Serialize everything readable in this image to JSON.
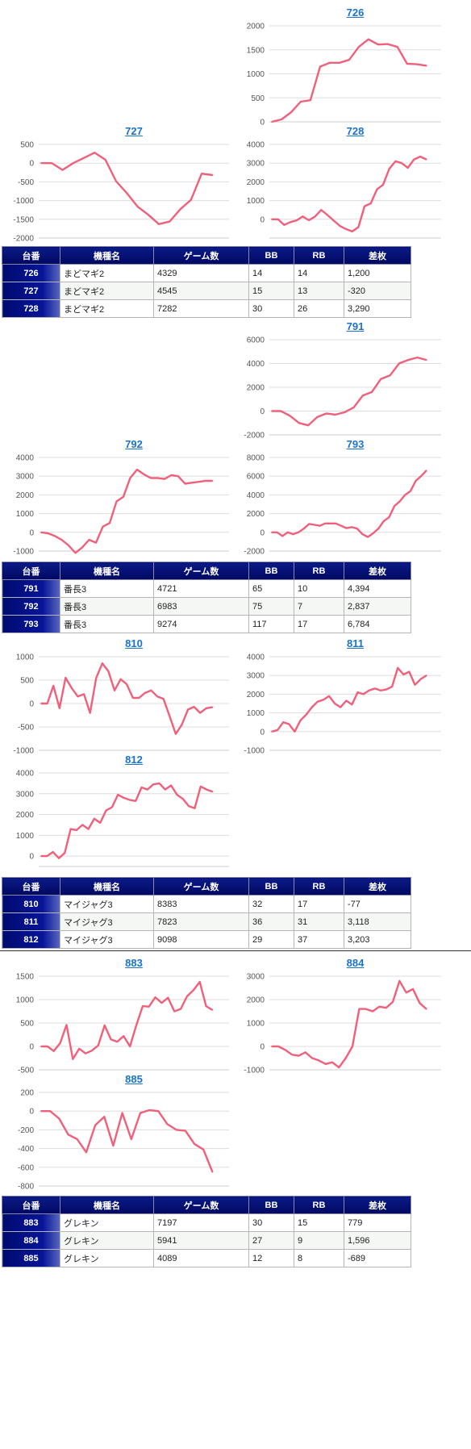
{
  "groups": [
    {
      "charts": [
        {
          "title": "726",
          "yticks": [
            0,
            500,
            1000,
            1500,
            2000
          ],
          "ylim": [
            0,
            2000
          ],
          "values": [
            0,
            50,
            200,
            420,
            450,
            1150,
            1230,
            1230,
            1290,
            1560,
            1720,
            1610,
            1620,
            1560,
            1210,
            1200,
            1170
          ]
        },
        {
          "title": "727",
          "yticks": [
            -2000,
            -1500,
            -1000,
            -500,
            0,
            500
          ],
          "ylim": [
            -2000,
            500
          ],
          "values": [
            0,
            0,
            -180,
            0,
            140,
            280,
            90,
            -480,
            -800,
            -1160,
            -1380,
            -1630,
            -1560,
            -1230,
            -980,
            -280,
            -320
          ]
        },
        {
          "title": "728",
          "yticks": [
            0,
            1000,
            2000,
            3000,
            4000
          ],
          "ylim": [
            -1000,
            4000
          ],
          "values": [
            0,
            0,
            -300,
            -150,
            -60,
            150,
            -50,
            150,
            500,
            230,
            -70,
            -350,
            -520,
            -650,
            -420,
            700,
            850,
            1600,
            1850,
            2700,
            3100,
            3000,
            2750,
            3200,
            3350,
            3200
          ]
        }
      ],
      "table": {
        "headers": [
          "台番",
          "機種名",
          "ゲーム数",
          "BB",
          "RB",
          "差枚"
        ],
        "rows": [
          {
            "no": "726",
            "name": "まどマギ2",
            "games": "4329",
            "bb": "14",
            "rb": "14",
            "diff": "1,200"
          },
          {
            "no": "727",
            "name": "まどマギ2",
            "games": "4545",
            "bb": "15",
            "rb": "13",
            "diff": "-320"
          },
          {
            "no": "728",
            "name": "まどマギ2",
            "games": "7282",
            "bb": "30",
            "rb": "26",
            "diff": "3,290"
          }
        ]
      }
    },
    {
      "charts": [
        {
          "title": "791",
          "yticks": [
            -2000,
            0,
            2000,
            4000,
            6000
          ],
          "ylim": [
            -2000,
            6000
          ],
          "values": [
            0,
            0,
            -400,
            -1000,
            -1200,
            -500,
            -200,
            -300,
            -100,
            300,
            1300,
            1600,
            2700,
            3000,
            4000,
            4300,
            4500,
            4300
          ]
        },
        {
          "title": "792",
          "yticks": [
            -1000,
            0,
            1000,
            2000,
            3000,
            4000
          ],
          "ylim": [
            -1000,
            4000
          ],
          "values": [
            0,
            -50,
            -200,
            -400,
            -700,
            -1100,
            -800,
            -400,
            -550,
            300,
            500,
            1650,
            1900,
            2900,
            3350,
            3100,
            2900,
            2900,
            2850,
            3050,
            3000,
            2600,
            2650,
            2700,
            2750,
            2750
          ]
        },
        {
          "title": "793",
          "yticks": [
            -2000,
            0,
            2000,
            4000,
            6000,
            8000
          ],
          "ylim": [
            -2000,
            8000
          ],
          "values": [
            0,
            0,
            -400,
            0,
            -200,
            0,
            400,
            900,
            800,
            700,
            950,
            950,
            950,
            700,
            450,
            550,
            400,
            -200,
            -500,
            -100,
            400,
            1200,
            1600,
            2800,
            3300,
            4000,
            4400,
            5500,
            6000,
            6600
          ]
        }
      ],
      "table": {
        "headers": [
          "台番",
          "機種名",
          "ゲーム数",
          "BB",
          "RB",
          "差枚"
        ],
        "rows": [
          {
            "no": "791",
            "name": "番長3",
            "games": "4721",
            "bb": "65",
            "rb": "10",
            "diff": "4,394"
          },
          {
            "no": "792",
            "name": "番長3",
            "games": "6983",
            "bb": "75",
            "rb": "7",
            "diff": "2,837"
          },
          {
            "no": "793",
            "name": "番長3",
            "games": "9274",
            "bb": "117",
            "rb": "17",
            "diff": "6,784"
          }
        ]
      }
    },
    {
      "charts": [
        {
          "title": "810",
          "yticks": [
            -1000,
            -500,
            0,
            500,
            1000
          ],
          "ylim": [
            -1000,
            1000
          ],
          "values": [
            0,
            0,
            380,
            -100,
            550,
            330,
            150,
            200,
            -200,
            550,
            860,
            690,
            280,
            520,
            410,
            120,
            120,
            230,
            280,
            150,
            100,
            -270,
            -650,
            -450,
            -130,
            -70,
            -200,
            -100,
            -80
          ]
        },
        {
          "title": "811",
          "yticks": [
            -1000,
            0,
            1000,
            2000,
            3000,
            4000
          ],
          "ylim": [
            -1000,
            4000
          ],
          "values": [
            0,
            80,
            500,
            400,
            0,
            600,
            900,
            1300,
            1600,
            1700,
            1900,
            1500,
            1300,
            1650,
            1450,
            2100,
            2000,
            2200,
            2300,
            2200,
            2250,
            2400,
            3400,
            3050,
            3200,
            2500,
            2800,
            3000
          ]
        },
        {
          "title": "812",
          "yticks": [
            0,
            1000,
            2000,
            3000,
            4000
          ],
          "ylim": [
            -500,
            4000
          ],
          "values": [
            0,
            0,
            200,
            -100,
            150,
            1300,
            1250,
            1500,
            1300,
            1800,
            1600,
            2200,
            2350,
            2950,
            2800,
            2700,
            2650,
            3300,
            3200,
            3450,
            3500,
            3200,
            3400,
            2950,
            2750,
            2400,
            2300,
            3350,
            3200,
            3100
          ]
        }
      ],
      "table": {
        "headers": [
          "台番",
          "機種名",
          "ゲーム数",
          "BB",
          "RB",
          "差枚"
        ],
        "rows": [
          {
            "no": "810",
            "name": "マイジャグ3",
            "games": "8383",
            "bb": "32",
            "rb": "17",
            "diff": "-77"
          },
          {
            "no": "811",
            "name": "マイジャグ3",
            "games": "7823",
            "bb": "36",
            "rb": "31",
            "diff": "3,118"
          },
          {
            "no": "812",
            "name": "マイジャグ3",
            "games": "9098",
            "bb": "29",
            "rb": "37",
            "diff": "3,203"
          }
        ]
      }
    },
    {
      "charts": [
        {
          "title": "883",
          "yticks": [
            -500,
            0,
            500,
            1000,
            1500
          ],
          "ylim": [
            -500,
            1500
          ],
          "values": [
            0,
            0,
            -100,
            70,
            460,
            -270,
            -50,
            -150,
            -90,
            20,
            450,
            150,
            100,
            220,
            0,
            450,
            860,
            850,
            1050,
            930,
            1040,
            750,
            800,
            1070,
            1200,
            1380,
            860,
            780
          ]
        },
        {
          "title": "884",
          "yticks": [
            -1000,
            0,
            1000,
            2000,
            3000
          ],
          "ylim": [
            -1000,
            3000
          ],
          "values": [
            0,
            0,
            -150,
            -350,
            -400,
            -250,
            -500,
            -600,
            -750,
            -680,
            -900,
            -500,
            0,
            1600,
            1600,
            1500,
            1700,
            1650,
            1900,
            2800,
            2300,
            2450,
            1850,
            1600
          ]
        },
        {
          "title": "885",
          "yticks": [
            -800,
            -600,
            -400,
            -200,
            0,
            200
          ],
          "ylim": [
            -800,
            200
          ],
          "values": [
            0,
            0,
            -80,
            -250,
            -300,
            -440,
            -150,
            -60,
            -370,
            -20,
            -300,
            -20,
            10,
            0,
            -140,
            -200,
            -210,
            -350,
            -410,
            -650
          ]
        }
      ],
      "table": {
        "headers": [
          "台番",
          "機種名",
          "ゲーム数",
          "BB",
          "RB",
          "差枚"
        ],
        "rows": [
          {
            "no": "883",
            "name": "グレキン",
            "games": "7197",
            "bb": "30",
            "rb": "15",
            "diff": "779"
          },
          {
            "no": "884",
            "name": "グレキン",
            "games": "5941",
            "bb": "27",
            "rb": "9",
            "diff": "1,596"
          },
          {
            "no": "885",
            "name": "グレキン",
            "games": "4089",
            "bb": "12",
            "rb": "8",
            "diff": "-689"
          }
        ]
      }
    }
  ],
  "colors": {
    "line": "#f0607a",
    "grid": "#dddddd",
    "negative": "#e02020",
    "link": "#1a73c8"
  },
  "chart_data": [
    {
      "type": "line",
      "title": "726",
      "ylim": [
        0,
        2000
      ],
      "series": [
        {
          "values": [
            0,
            50,
            200,
            420,
            450,
            1150,
            1230,
            1230,
            1290,
            1560,
            1720,
            1610,
            1620,
            1560,
            1210,
            1200,
            1170
          ]
        }
      ]
    },
    {
      "type": "line",
      "title": "727",
      "ylim": [
        -2000,
        500
      ],
      "series": [
        {
          "values": [
            0,
            0,
            -180,
            0,
            140,
            280,
            90,
            -480,
            -800,
            -1160,
            -1380,
            -1630,
            -1560,
            -1230,
            -980,
            -280,
            -320
          ]
        }
      ]
    },
    {
      "type": "line",
      "title": "728",
      "ylim": [
        -1000,
        4000
      ],
      "series": [
        {
          "values": [
            0,
            0,
            -300,
            -150,
            -60,
            150,
            -50,
            150,
            500,
            230,
            -70,
            -350,
            -520,
            -650,
            -420,
            700,
            850,
            1600,
            1850,
            2700,
            3100,
            3000,
            2750,
            3200,
            3350,
            3200
          ]
        }
      ]
    },
    {
      "type": "line",
      "title": "791",
      "ylim": [
        -2000,
        6000
      ],
      "series": [
        {
          "values": [
            0,
            0,
            -400,
            -1000,
            -1200,
            -500,
            -200,
            -300,
            -100,
            300,
            1300,
            1600,
            2700,
            3000,
            4000,
            4300,
            4500,
            4300
          ]
        }
      ]
    },
    {
      "type": "line",
      "title": "792",
      "ylim": [
        -1000,
        4000
      ],
      "series": [
        {
          "values": [
            0,
            -50,
            -200,
            -400,
            -700,
            -1100,
            -800,
            -400,
            -550,
            300,
            500,
            1650,
            1900,
            2900,
            3350,
            3100,
            2900,
            2900,
            2850,
            3050,
            3000,
            2600,
            2650,
            2700,
            2750,
            2750
          ]
        }
      ]
    },
    {
      "type": "line",
      "title": "793",
      "ylim": [
        -2000,
        8000
      ],
      "series": [
        {
          "values": [
            0,
            0,
            -400,
            0,
            -200,
            0,
            400,
            900,
            800,
            700,
            950,
            950,
            950,
            700,
            450,
            550,
            400,
            -200,
            -500,
            -100,
            400,
            1200,
            1600,
            2800,
            3300,
            4000,
            4400,
            5500,
            6000,
            6600
          ]
        }
      ]
    },
    {
      "type": "line",
      "title": "810",
      "ylim": [
        -1000,
        1000
      ],
      "series": [
        {
          "values": [
            0,
            0,
            380,
            -100,
            550,
            330,
            150,
            200,
            -200,
            550,
            860,
            690,
            280,
            520,
            410,
            120,
            120,
            230,
            280,
            150,
            100,
            -270,
            -650,
            -450,
            -130,
            -70,
            -200,
            -100,
            -80
          ]
        }
      ]
    },
    {
      "type": "line",
      "title": "811",
      "ylim": [
        -1000,
        4000
      ],
      "series": [
        {
          "values": [
            0,
            80,
            500,
            400,
            0,
            600,
            900,
            1300,
            1600,
            1700,
            1900,
            1500,
            1300,
            1650,
            1450,
            2100,
            2000,
            2200,
            2300,
            2200,
            2250,
            2400,
            3400,
            3050,
            3200,
            2500,
            2800,
            3000
          ]
        }
      ]
    },
    {
      "type": "line",
      "title": "812",
      "ylim": [
        -500,
        4000
      ],
      "series": [
        {
          "values": [
            0,
            0,
            200,
            -100,
            150,
            1300,
            1250,
            1500,
            1300,
            1800,
            1600,
            2200,
            2350,
            2950,
            2800,
            2700,
            2650,
            3300,
            3200,
            3450,
            3500,
            3200,
            3400,
            2950,
            2750,
            2400,
            2300,
            3350,
            3200,
            3100
          ]
        }
      ]
    },
    {
      "type": "line",
      "title": "883",
      "ylim": [
        -500,
        1500
      ],
      "series": [
        {
          "values": [
            0,
            0,
            -100,
            70,
            460,
            -270,
            -50,
            -150,
            -90,
            20,
            450,
            150,
            100,
            220,
            0,
            450,
            860,
            850,
            1050,
            930,
            1040,
            750,
            800,
            1070,
            1200,
            1380,
            860,
            780
          ]
        }
      ]
    },
    {
      "type": "line",
      "title": "884",
      "ylim": [
        -1000,
        3000
      ],
      "series": [
        {
          "values": [
            0,
            0,
            -150,
            -350,
            -400,
            -250,
            -500,
            -600,
            -750,
            -680,
            -900,
            -500,
            0,
            1600,
            1600,
            1500,
            1700,
            1650,
            1900,
            2800,
            2300,
            2450,
            1850,
            1600
          ]
        }
      ]
    },
    {
      "type": "line",
      "title": "885",
      "ylim": [
        -800,
        200
      ],
      "series": [
        {
          "values": [
            0,
            0,
            -80,
            -250,
            -300,
            -440,
            -150,
            -60,
            -370,
            -20,
            -300,
            -20,
            10,
            0,
            -140,
            -200,
            -210,
            -350,
            -410,
            -650
          ]
        }
      ]
    }
  ]
}
